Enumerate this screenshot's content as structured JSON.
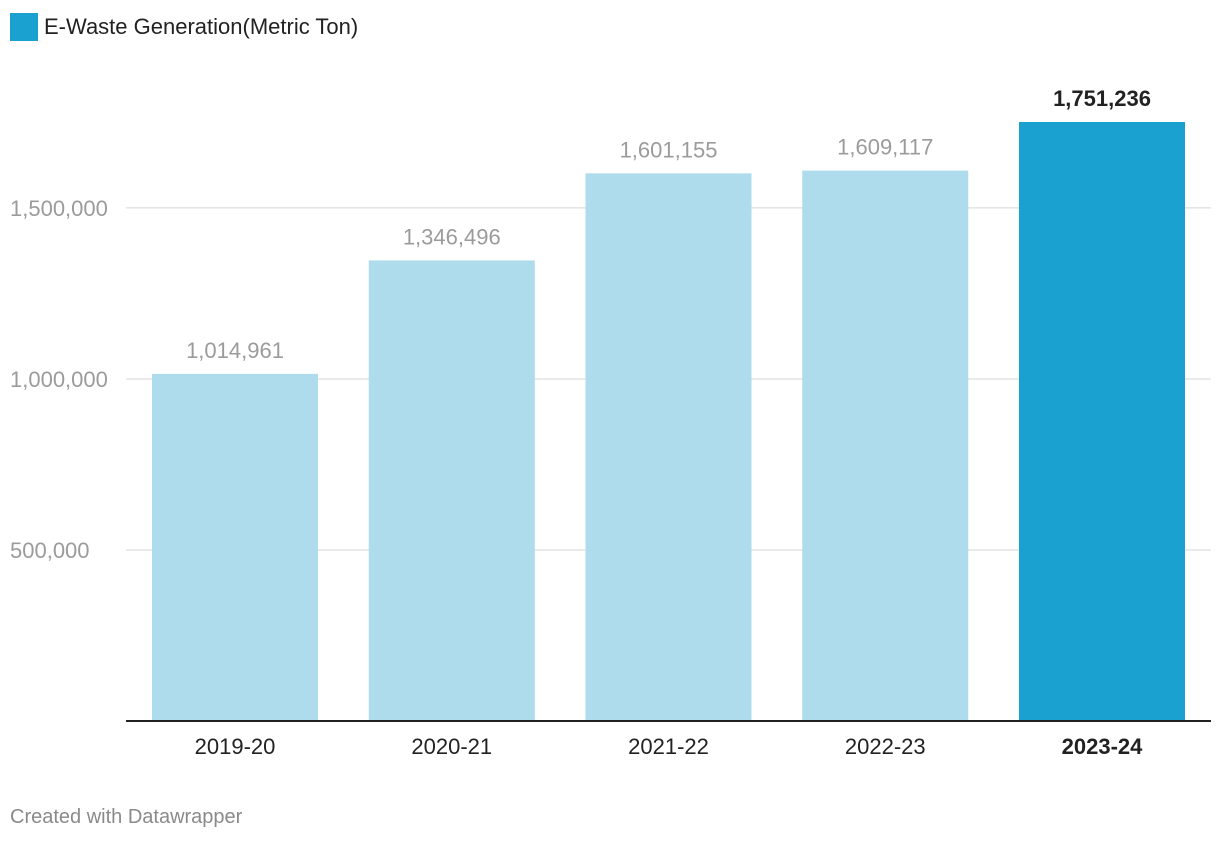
{
  "legend": {
    "label": "E-Waste Generation(Metric Ton)",
    "color": "#1aa1cf"
  },
  "footer": {
    "credit": "Created with Datawrapper"
  },
  "colors": {
    "bar_muted": "#aedcec",
    "bar_highlight": "#1aa1cf",
    "grid": "#e3e3e3",
    "baseline": "#222222",
    "tick_text": "#9b9b9b",
    "value_label": "#9b9b9b",
    "value_label_highlight": "#222222",
    "category_label": "#222222"
  },
  "chart_data": {
    "type": "bar",
    "title": "",
    "xlabel": "",
    "ylabel": "",
    "categories": [
      "2019-20",
      "2020-21",
      "2021-22",
      "2022-23",
      "2023-24"
    ],
    "series": [
      {
        "name": "E-Waste Generation(Metric Ton)",
        "values": [
          1014961,
          1346496,
          1601155,
          1609117,
          1751236
        ]
      }
    ],
    "value_labels": [
      "1,014,961",
      "1,346,496",
      "1,601,155",
      "1,609,117",
      "1,751,236"
    ],
    "highlight_index": 4,
    "ylim": [
      0,
      1751236
    ],
    "yticks": [
      500000,
      1000000,
      1500000
    ],
    "ytick_labels": [
      "500,000",
      "1,000,000",
      "1,500,000"
    ],
    "grid": true,
    "legend_position": "top-left"
  }
}
